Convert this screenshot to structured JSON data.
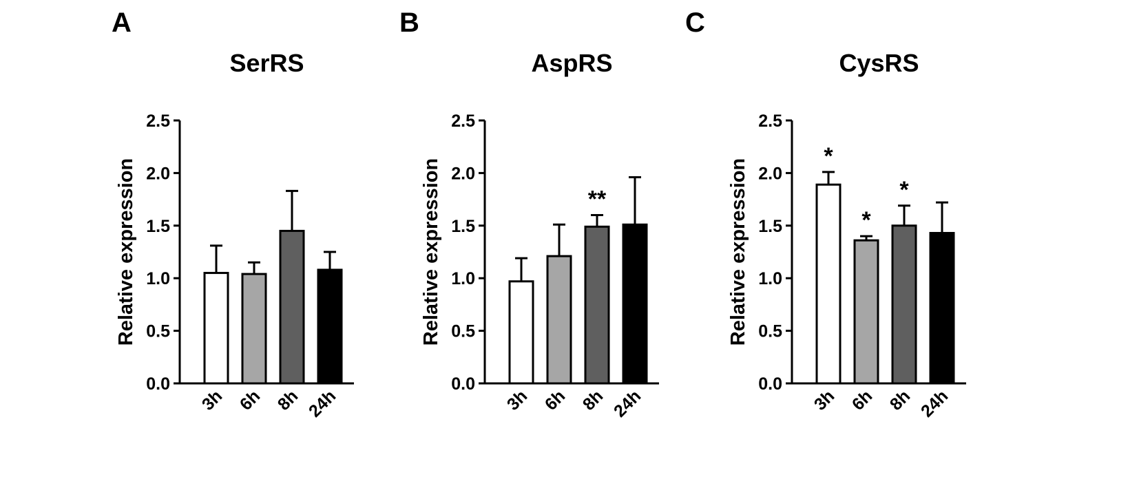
{
  "chart_data": [
    {
      "type": "bar",
      "panel": "A",
      "title": "SerRS",
      "ylabel": "Relative expression",
      "xlabel": "",
      "ylim": [
        0,
        2.5
      ],
      "yticks": [
        "0.0",
        "0.5",
        "1.0",
        "1.5",
        "2.0",
        "2.5"
      ],
      "categories": [
        "3h",
        "6h",
        "8h",
        "24h"
      ],
      "values": [
        1.05,
        1.04,
        1.45,
        1.08
      ],
      "errors": [
        0.26,
        0.11,
        0.38,
        0.17
      ],
      "significance": [
        "",
        "",
        "",
        ""
      ],
      "bar_colors": [
        "#ffffff",
        "#a6a6a6",
        "#5f5f5f",
        "#000000"
      ],
      "grid": false
    },
    {
      "type": "bar",
      "panel": "B",
      "title": "AspRS",
      "ylabel": "Relative expression",
      "xlabel": "",
      "ylim": [
        0,
        2.5
      ],
      "yticks": [
        "0.0",
        "0.5",
        "1.0",
        "1.5",
        "2.0",
        "2.5"
      ],
      "categories": [
        "3h",
        "6h",
        "8h",
        "24h"
      ],
      "values": [
        0.97,
        1.21,
        1.49,
        1.51
      ],
      "errors": [
        0.22,
        0.3,
        0.11,
        0.45
      ],
      "significance": [
        "",
        "",
        "**",
        ""
      ],
      "bar_colors": [
        "#ffffff",
        "#a6a6a6",
        "#5f5f5f",
        "#000000"
      ],
      "grid": false
    },
    {
      "type": "bar",
      "panel": "C",
      "title": "CysRS",
      "ylabel": "Relative expression",
      "xlabel": "",
      "ylim": [
        0,
        2.5
      ],
      "yticks": [
        "0.0",
        "0.5",
        "1.0",
        "1.5",
        "2.0",
        "2.5"
      ],
      "categories": [
        "3h",
        "6h",
        "8h",
        "24h"
      ],
      "values": [
        1.89,
        1.36,
        1.5,
        1.43
      ],
      "errors": [
        0.12,
        0.04,
        0.19,
        0.29
      ],
      "significance": [
        "*",
        "*",
        "*",
        ""
      ],
      "bar_colors": [
        "#ffffff",
        "#a6a6a6",
        "#5f5f5f",
        "#000000"
      ],
      "grid": false
    }
  ]
}
